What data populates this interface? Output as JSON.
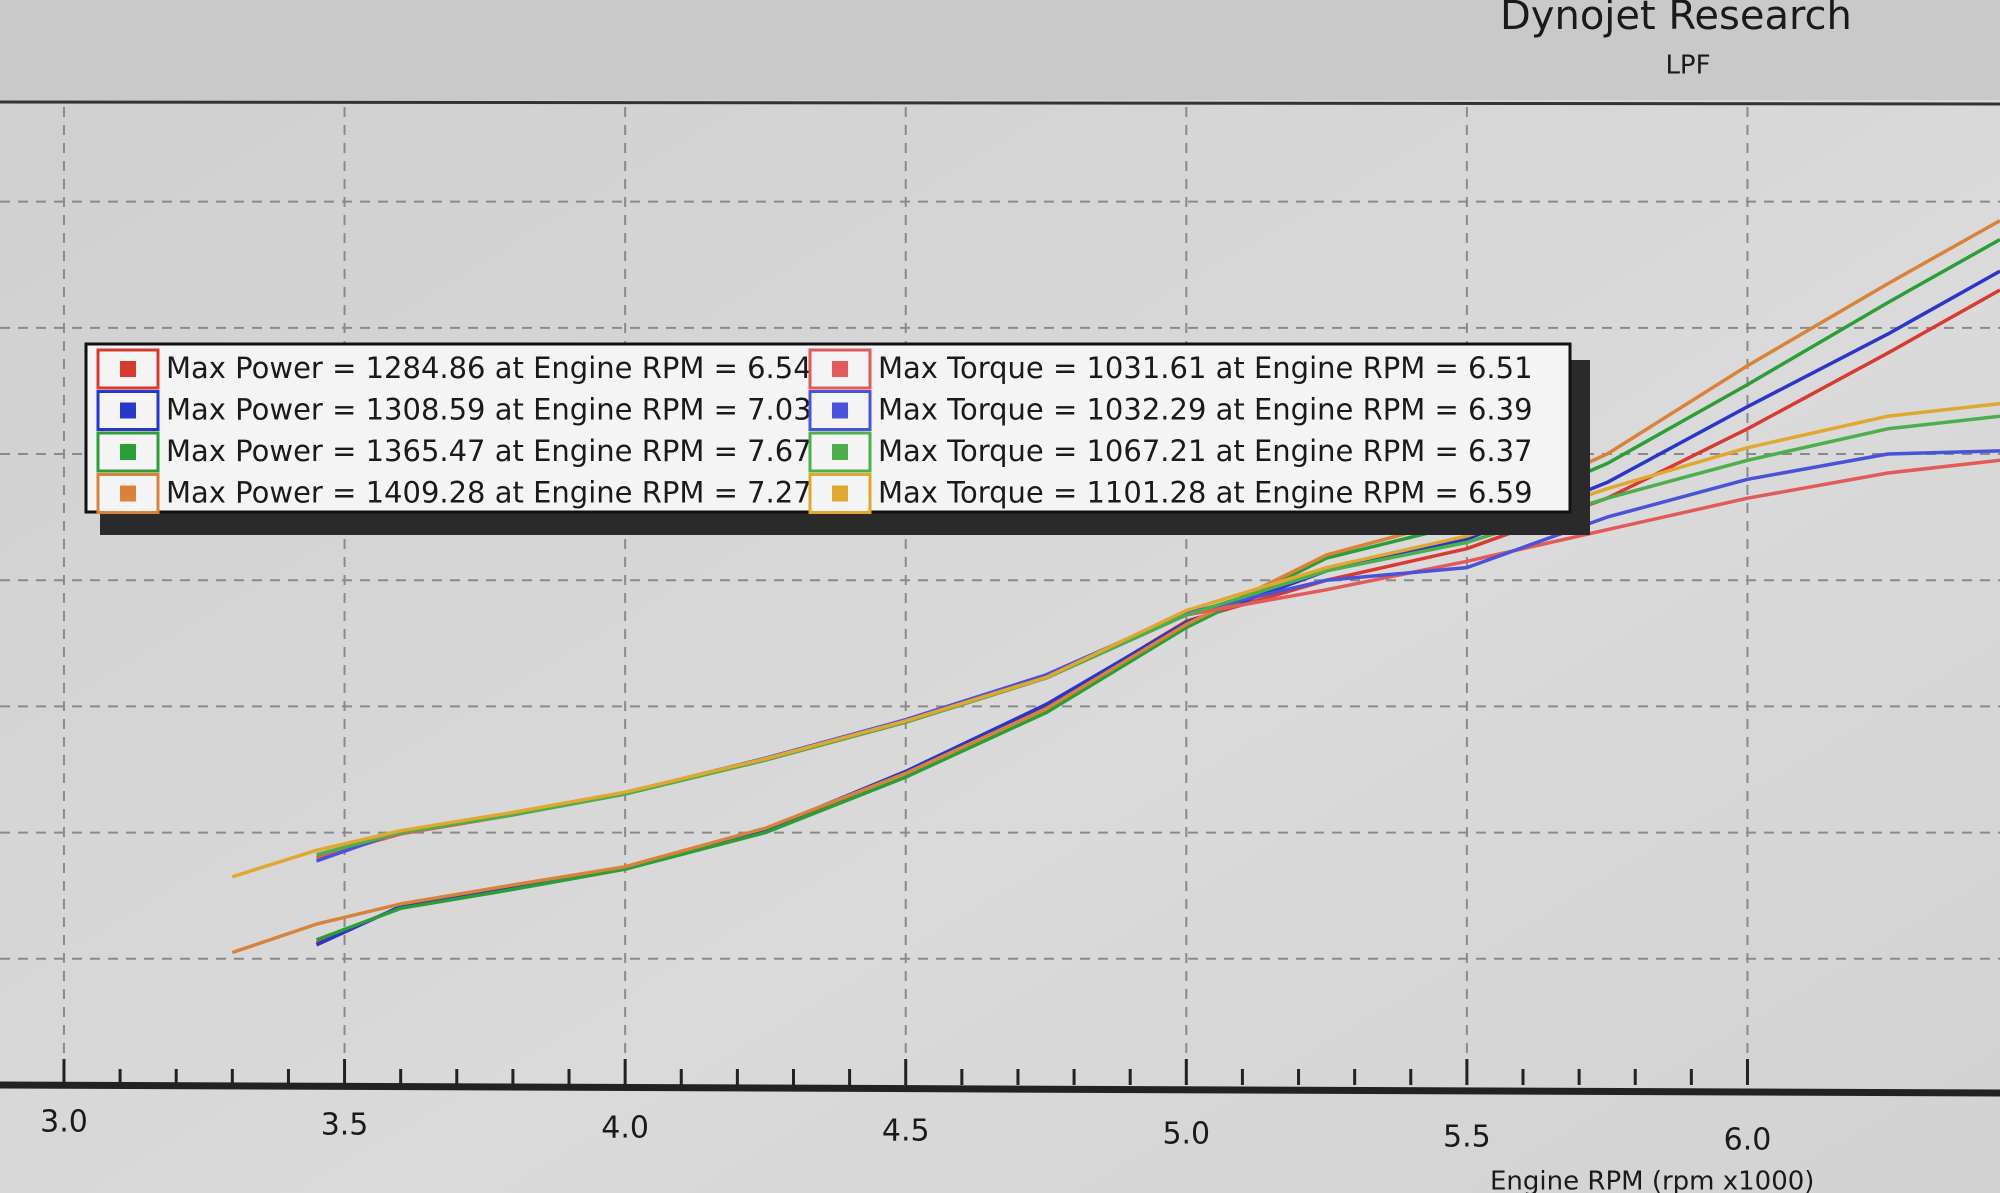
{
  "chart_data": {
    "type": "line",
    "title": "Dynojet Research",
    "subtitle": "LPF",
    "x_label": "Engine RPM (rpm x1000)",
    "x": [
      3.3,
      3.45,
      3.6,
      3.8,
      4.0,
      4.25,
      4.5,
      4.75,
      5.0,
      5.25,
      5.5,
      5.75,
      6.0,
      6.25,
      6.45
    ],
    "xlim": [
      2.886,
      6.45
    ],
    "xticks": [
      {
        "value": 3,
        "label": "3.0"
      },
      3.5,
      {
        "value": 4,
        "label": "4.0"
      },
      4.5,
      {
        "value": 5,
        "label": "5.0"
      },
      5.5,
      {
        "value": 6,
        "label": "6.0"
      }
    ],
    "ylim": [
      0,
      1550
    ],
    "ygrid": [
      200,
      400,
      600,
      800,
      1000,
      1200,
      1400
    ],
    "grid": true,
    "series": [
      {
        "name": "Max Power = 1284.86 at Engine RPM = 6.54",
        "color": "#d83a32",
        "values": [
          null,
          225,
          282,
          312,
          343,
          404,
          495,
          600,
          735,
          800,
          850,
          930,
          1040,
          1160,
          1260
        ]
      },
      {
        "name": "Max Power = 1308.59 at Engine RPM = 7.03",
        "color": "#2a36c8",
        "values": [
          null,
          222,
          283,
          314,
          344,
          405,
          497,
          603,
          733,
          815,
          865,
          955,
          1075,
          1190,
          1290
        ]
      },
      {
        "name": "Max Power = 1365.47 at Engine RPM = 7.67",
        "color": "#2c9e38",
        "values": [
          null,
          230,
          280,
          310,
          342,
          400,
          488,
          590,
          725,
          835,
          890,
          985,
          1110,
          1240,
          1340
        ]
      },
      {
        "name": "Max Power = 1409.28 at Engine RPM = 7.27",
        "color": "#d9823a",
        "values": [
          210,
          255,
          287,
          317,
          346,
          407,
          494,
          596,
          730,
          840,
          900,
          1000,
          1140,
          1270,
          1370
        ]
      },
      {
        "name": "Max Torque = 1031.61 at Engine RPM = 6.51",
        "color": "#e25a5a",
        "values": [
          null,
          360,
          398,
          428,
          462,
          515,
          575,
          645,
          745,
          785,
          830,
          880,
          930,
          970,
          990
        ]
      },
      {
        "name": "Max Torque = 1032.29 at Engine RPM = 6.39",
        "color": "#4a52d8",
        "values": [
          null,
          355,
          402,
          430,
          463,
          518,
          579,
          650,
          748,
          800,
          820,
          900,
          960,
          1000,
          1005
        ]
      },
      {
        "name": "Max Torque = 1067.21 at Engine RPM = 6.37",
        "color": "#4cae4c",
        "values": [
          null,
          365,
          400,
          428,
          461,
          515,
          575,
          645,
          745,
          815,
          860,
          930,
          990,
          1040,
          1060
        ]
      },
      {
        "name": "Max Torque = 1101.28 at Engine RPM = 6.59",
        "color": "#e0a830",
        "values": [
          330,
          372,
          403,
          432,
          464,
          517,
          577,
          646,
          752,
          820,
          870,
          945,
          1010,
          1060,
          1080
        ]
      }
    ]
  }
}
